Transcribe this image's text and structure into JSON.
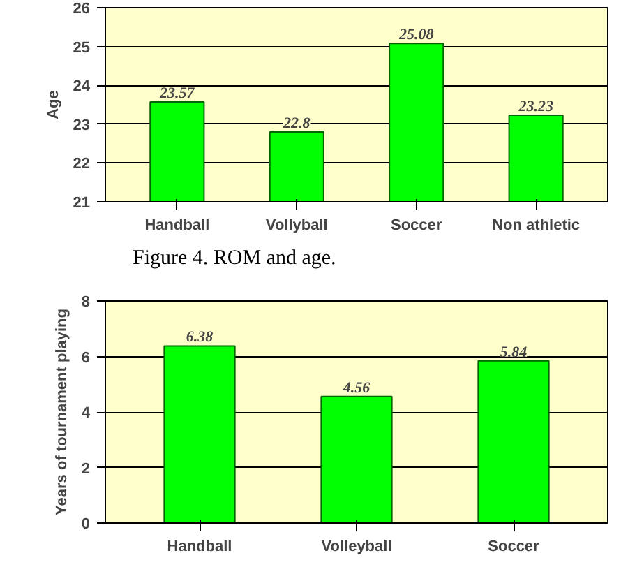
{
  "chart_data": [
    {
      "type": "bar",
      "ylabel": "Age",
      "categories": [
        "Handball",
        "Vollyball",
        "Soccer",
        "Non athletic"
      ],
      "values": [
        23.57,
        22.8,
        25.08,
        23.23
      ],
      "color": "#00ff00",
      "ylim": [
        21,
        26
      ],
      "yticks": [
        21,
        22,
        23,
        24,
        25,
        26
      ],
      "grid": "y",
      "data_labels": true,
      "annotations": [
        "Figure 4. ROM and age."
      ]
    },
    {
      "type": "bar",
      "ylabel": "Years of tournament playing",
      "categories": [
        "Handball",
        "Volleyball",
        "Soccer"
      ],
      "values": [
        6.38,
        4.56,
        5.84
      ],
      "color": "#00ff00",
      "ylim": [
        0,
        8
      ],
      "yticks": [
        0,
        2,
        4,
        6,
        8
      ],
      "grid": "y",
      "data_labels": true
    }
  ]
}
